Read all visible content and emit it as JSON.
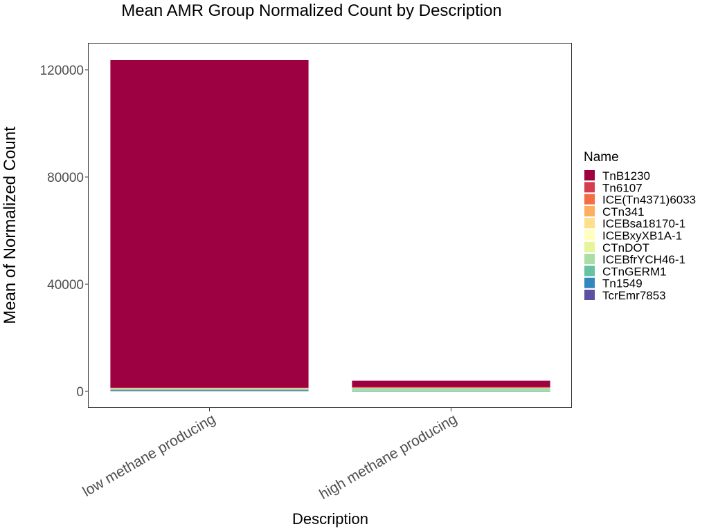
{
  "chart_data": {
    "type": "bar",
    "stacked": true,
    "title": "Mean AMR Group Normalized Count by Description",
    "xlabel": "Description",
    "ylabel": "Mean of Normalized Count",
    "categories": [
      "low methane producing",
      "high methane producing"
    ],
    "ylim": [
      -6000,
      130000
    ],
    "yticks": [
      0,
      40000,
      80000,
      120000
    ],
    "ytick_labels": [
      "0",
      "40000",
      "80000",
      "120000"
    ],
    "grid": false,
    "legend": {
      "title": "Name",
      "position": "right"
    },
    "series": [
      {
        "name": "TnB1230",
        "color": "#9E0142",
        "values": [
          122200,
          2400
        ]
      },
      {
        "name": "Tn6107",
        "color": "#D53E4F",
        "values": [
          50,
          30
        ]
      },
      {
        "name": "ICE(Tn4371)6033",
        "color": "#F46D43",
        "values": [
          30,
          20
        ]
      },
      {
        "name": "CTn341",
        "color": "#FDAE61",
        "values": [
          50,
          30
        ]
      },
      {
        "name": "ICEBsa18170-1",
        "color": "#FEE08B",
        "values": [
          60,
          30
        ]
      },
      {
        "name": "ICEBxyXB1A-1",
        "color": "#FFFFBF",
        "values": [
          30,
          20
        ]
      },
      {
        "name": "CTnDOT",
        "color": "#E6F598",
        "values": [
          250,
          150
        ]
      },
      {
        "name": "ICEBfrYCH46-1",
        "color": "#ABDDA4",
        "values": [
          300,
          1200
        ]
      },
      {
        "name": "CTnGERM1",
        "color": "#66C2A5",
        "values": [
          250,
          50
        ]
      },
      {
        "name": "Tn1549",
        "color": "#3288BD",
        "values": [
          200,
          20
        ]
      },
      {
        "name": "TcrEmr7853",
        "color": "#5E4FA2",
        "values": [
          200,
          20
        ]
      }
    ]
  }
}
